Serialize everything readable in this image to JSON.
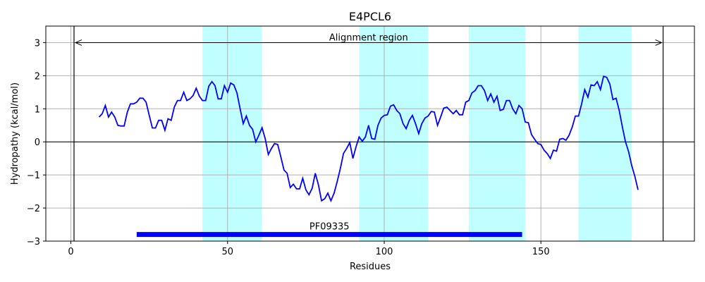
{
  "chart_data": {
    "type": "line",
    "title": "E4PCL6",
    "xlabel": "Residues",
    "ylabel": "Hydropathy (kcal/mol)",
    "xlim": [
      -8,
      199
    ],
    "ylim": [
      -3,
      3.5
    ],
    "xticks": [
      0,
      50,
      100,
      150
    ],
    "yticks": [
      -3,
      -2,
      -1,
      0,
      1,
      2,
      3
    ],
    "grid": true,
    "colors": {
      "line": "#0000ff",
      "highlight": "#c0ffff",
      "domain_bar": "#0000ff",
      "zero_line": "#000000"
    },
    "highlight_regions": [
      [
        42,
        61
      ],
      [
        92,
        114
      ],
      [
        127,
        145
      ],
      [
        162,
        179
      ]
    ],
    "vertical_lines": [
      1,
      189
    ],
    "alignment_region": {
      "label": "Alignment region",
      "start": 1,
      "end": 189,
      "y": 3.0
    },
    "domain": {
      "label": "PF09335",
      "start": 21,
      "end": 144,
      "y": -2.8
    },
    "series": [
      {
        "x": [
          9,
          10,
          11,
          12,
          13,
          14,
          15,
          16,
          17,
          18,
          19,
          20,
          21,
          22,
          23,
          24,
          25,
          26,
          27,
          28,
          29,
          30,
          31,
          32,
          33,
          34,
          35,
          36,
          37,
          38,
          39,
          40,
          41,
          42,
          43,
          44,
          45,
          46,
          47,
          48,
          49,
          50,
          51,
          52,
          53,
          54,
          55,
          56,
          57,
          58,
          59,
          60,
          61,
          62,
          63,
          64,
          65,
          66,
          67,
          68,
          69,
          70,
          71,
          72,
          73,
          74,
          75,
          76,
          77,
          78,
          79,
          80,
          81,
          82,
          83,
          84,
          85,
          86,
          87,
          88,
          89,
          90,
          91,
          92,
          93,
          94,
          95,
          96,
          97,
          98,
          99,
          100,
          101,
          102,
          103,
          104,
          105,
          106,
          107,
          108,
          109,
          110,
          111,
          112,
          113,
          114,
          115,
          116,
          117,
          118,
          119,
          120,
          121,
          122,
          123,
          124,
          125,
          126,
          127,
          128,
          129,
          130,
          131,
          132,
          133,
          134,
          135,
          136,
          137,
          138,
          139,
          140,
          141,
          142,
          143,
          144,
          145,
          146,
          147,
          148,
          149,
          150,
          151,
          152,
          153,
          154,
          155,
          156,
          157,
          158,
          159,
          160,
          161,
          162,
          163,
          164,
          165,
          166,
          167,
          168,
          169,
          170,
          171,
          172,
          173,
          174,
          175,
          176,
          177,
          178,
          179,
          180,
          181
        ],
        "y": [
          0.75,
          0.85,
          1.1,
          0.75,
          0.9,
          0.75,
          0.5,
          0.48,
          0.48,
          0.9,
          1.15,
          1.15,
          1.2,
          1.32,
          1.32,
          1.2,
          0.8,
          0.42,
          0.42,
          0.65,
          0.65,
          0.35,
          0.7,
          0.65,
          1.05,
          1.25,
          1.25,
          1.5,
          1.25,
          1.3,
          1.4,
          1.62,
          1.38,
          1.25,
          1.25,
          1.68,
          1.82,
          1.7,
          1.3,
          1.3,
          1.7,
          1.5,
          1.78,
          1.72,
          1.48,
          1.0,
          0.55,
          0.78,
          0.5,
          0.38,
          0.0,
          0.2,
          0.43,
          0.1,
          -0.38,
          -0.2,
          -0.05,
          -0.08,
          -0.45,
          -0.85,
          -0.95,
          -1.38,
          -1.28,
          -1.42,
          -1.42,
          -1.1,
          -1.45,
          -1.6,
          -1.4,
          -0.95,
          -1.3,
          -1.78,
          -1.72,
          -1.55,
          -1.78,
          -1.55,
          -1.2,
          -0.8,
          -0.35,
          -0.2,
          -0.02,
          -0.5,
          -0.15,
          0.15,
          0.02,
          0.15,
          0.5,
          0.1,
          0.08,
          0.5,
          0.72,
          0.8,
          0.82,
          1.08,
          1.12,
          0.95,
          0.85,
          0.55,
          0.4,
          0.65,
          0.8,
          0.55,
          0.25,
          0.55,
          0.72,
          0.78,
          0.92,
          0.9,
          0.5,
          0.75,
          1.02,
          1.05,
          0.95,
          0.85,
          0.95,
          0.82,
          0.82,
          1.2,
          1.25,
          1.48,
          1.55,
          1.7,
          1.7,
          1.55,
          1.25,
          1.45,
          1.2,
          1.38,
          0.95,
          0.98,
          1.25,
          1.25,
          1.0,
          0.85,
          1.1,
          1.0,
          0.6,
          0.58,
          0.22,
          0.08,
          -0.05,
          -0.08,
          -0.25,
          -0.35,
          -0.5,
          -0.25,
          -0.28,
          0.08,
          0.1,
          0.05,
          0.2,
          0.45,
          0.78,
          0.78,
          1.15,
          1.58,
          1.35,
          1.72,
          1.7,
          1.82,
          1.58,
          1.98,
          1.95,
          1.75,
          1.28,
          1.32,
          0.95,
          0.45,
          0.0,
          -0.3,
          -0.72,
          -1.05,
          -1.45
        ]
      }
    ]
  }
}
